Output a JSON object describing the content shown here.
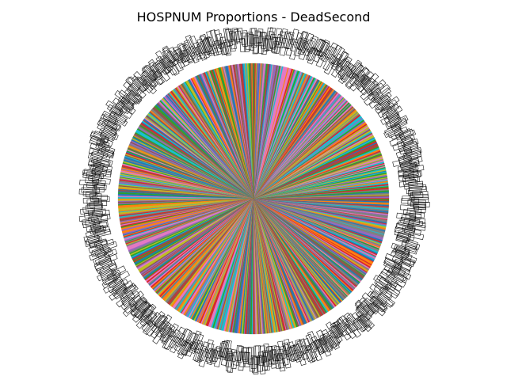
{
  "chart_data": {
    "type": "pie",
    "title": "HOSPNUM Proportions - DeadSecond",
    "slice_count": 720,
    "legend": "none",
    "start_angle_deg": 90,
    "direction": "counterclockwise",
    "label_note": "Each wedge carries a hospital-number label outside the pie; the labels overlap into an illegible dark ring.",
    "colors": [
      "#1f77b4",
      "#ff7f0e",
      "#2ca02c",
      "#d62728",
      "#9467bd",
      "#8c564b",
      "#e377c2",
      "#7f7f7f",
      "#bcbd22",
      "#17becf"
    ]
  }
}
